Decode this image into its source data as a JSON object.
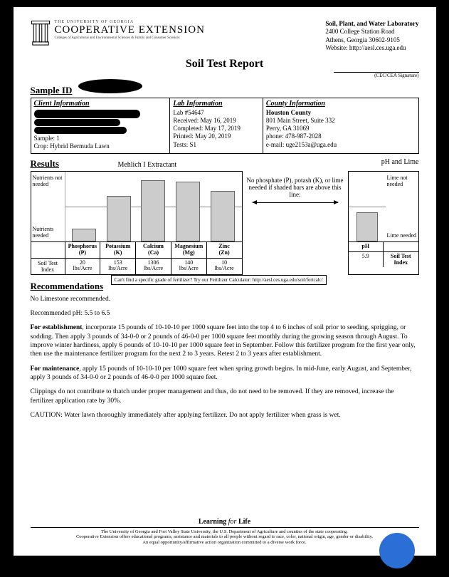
{
  "header": {
    "inst_small": "THE UNIVERSITY OF GEORGIA",
    "inst_main": "COOPERATIVE EXTENSION",
    "inst_sub": "Colleges of Agricultural and Environmental Sciences & Family and Consumer Sciences",
    "lab_name": "Soil, Plant, and Water Laboratory",
    "lab_addr1": "2400 College Station Road",
    "lab_addr2": "Athens, Georgia 30602-9105",
    "lab_web": "Website:  http://aesl.ces.uga.edu"
  },
  "report_title": "Soil Test Report",
  "sig_label": "(CEC/CEA Signature)",
  "sample_id_label": "Sample ID",
  "info": {
    "client_hd": "Client Information",
    "client_sample": "Sample:  1",
    "client_crop": "Crop: Hybrid Bermuda Lawn",
    "lab_hd": "Lab Information",
    "lab_no": "Lab      #54647",
    "lab_recv": "Received:   May 16, 2019",
    "lab_comp": "Completed:  May 17, 2019",
    "lab_print": "Printed:        May 20, 2019",
    "lab_tests": "Tests:  S1",
    "county_hd": "County Information",
    "county_name": "Houston County",
    "county_addr": "801 Main Street, Suite 332",
    "county_city": "Perry, GA  31069",
    "county_phone": "phone: 478-987-2028",
    "county_email": "e-mail: uge2153a@uga.edu"
  },
  "results": {
    "title": "Results",
    "extractant": "Mehlich I Extractant",
    "ph_lime": "pH and Lime",
    "y_top": "Nutrients not needed",
    "y_bot": "Nutrients needed",
    "mid_text": "No phosphate (P), potash (K), or lime needed if shaded bars are above this line:",
    "nutrients": [
      {
        "name": "Phosphorus",
        "sym": "(P)",
        "value": "20",
        "unit": "lbs/Acre",
        "bar_pct": 18
      },
      {
        "name": "Potassium",
        "sym": "(K)",
        "value": "153",
        "unit": "lbs/Acre",
        "bar_pct": 65
      },
      {
        "name": "Calcium",
        "sym": "(Ca)",
        "value": "1306",
        "unit": "lbs/Acre",
        "bar_pct": 88
      },
      {
        "name": "Magnesium",
        "sym": "(Mg)",
        "value": "140",
        "unit": "lbs/Acre",
        "bar_pct": 86
      },
      {
        "name": "Zinc",
        "sym": "(Zn)",
        "value": "10",
        "unit": "lbs/Acre",
        "bar_pct": 72
      }
    ],
    "index_label": "Soil Test Index",
    "ph": {
      "r_top": "Lime not needed",
      "r_bot": "Lime needed",
      "label": "pH",
      "value": "5.9",
      "bar_pct": 42,
      "index_label": "Soil Test Index"
    }
  },
  "rec": {
    "title": "Recommendations",
    "fert_calc": "Can't find a specific grade of fertilizer?  Try our Fertilizer Calculator: http://aesl.ces.uga.edu/soil/fertcalc/",
    "p1": "No Limestone recommended.",
    "p2": "Recommended pH: 5.5 to 6.5",
    "p3_b": "For establishment",
    "p3": ", incorporate 15 pounds of 10-10-10 per 1000 square feet into the top 4 to 6 inches of soil prior to seeding, sprigging, or sodding. Then apply 3 pounds of 34-0-0 or 2 pounds of 46-0-0 per 1000 square feet monthly during the growing season through August. To improve winter hardiness, apply 6 pounds of 10-10-10 per 1000 square feet in September. Follow this fertilizer program for the first year only, then use the maintenance fertilizer program for the next 2 to 3 years. Retest 2 to 3 years after establishment.",
    "p4_b": "For maintenance",
    "p4": ", apply 15 pounds of 10-10-10 per 1000 square feet when spring growth begins. In mid-June, early August, and September, apply 3 pounds of 34-0-0 or 2 pounds of 46-0-0 per 1000 square feet.",
    "p5": "Clippings do not contribute to thatch under proper management and thus, do not need to be removed. If they are removed, increase the fertilizer application rate by 30%.",
    "p6": "CAUTION: Water lawn thoroughly immediately after applying fertilizer. Do not apply fertilizer when grass is wet."
  },
  "footer": {
    "lfl_a": "Learning ",
    "lfl_b": "for",
    "lfl_c": " Life",
    "l1": "The University of Georgia and Fort Valley State University, the U.S. Department of Agriculture and counties of the state cooperating.",
    "l2": "Cooperative Extension offers educational programs, assistance and materials to all people without regard to race, color, national origin, age, gender or disability.",
    "l3": "An equal opportunity/affirmative action organization committed to a diverse work force."
  },
  "colors": {
    "bar_fill": "#cccccc",
    "bar_border": "#666666",
    "bubble": "#2b6fd6"
  }
}
